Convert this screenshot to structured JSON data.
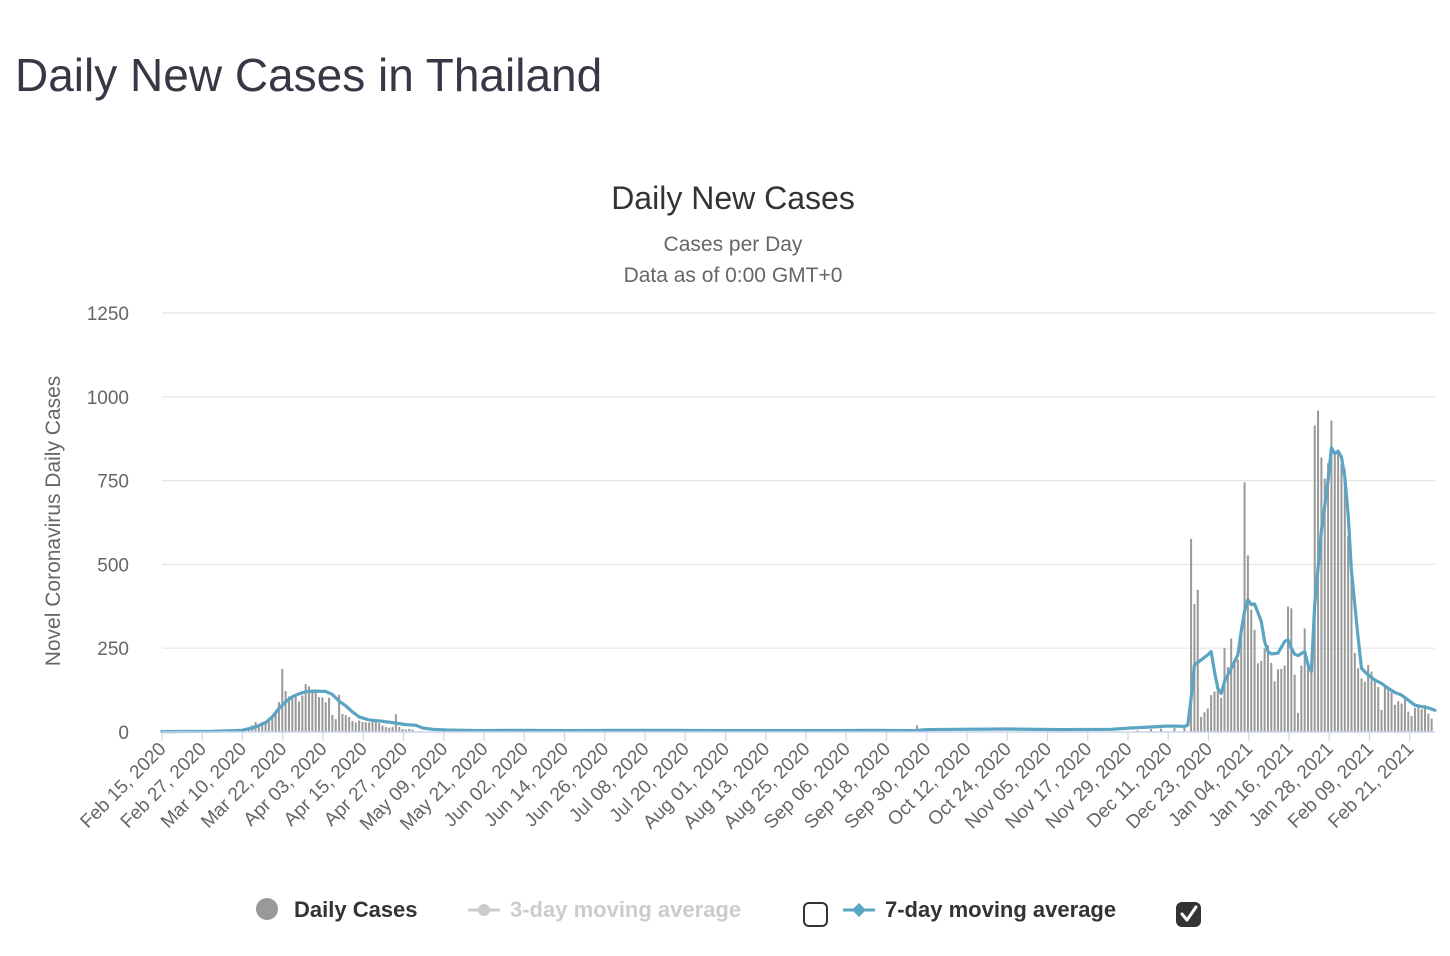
{
  "page": {
    "title": "Daily New Cases in Thailand"
  },
  "chart_data": {
    "type": "bar",
    "title": "Daily New Cases",
    "subtitle_lines": [
      "Cases per Day",
      "Data as of 0:00 GMT+0"
    ],
    "ylabel": "Novel Coronavirus Daily Cases",
    "ylim": [
      0,
      1250
    ],
    "yticks": [
      0,
      250,
      500,
      750,
      1000,
      1250
    ],
    "x_start": "2020-02-15",
    "x_end": "2021-03-02",
    "x_tick_labels": [
      "Feb 15, 2020",
      "Feb 27, 2020",
      "Mar 10, 2020",
      "Mar 22, 2020",
      "Apr 03, 2020",
      "Apr 15, 2020",
      "Apr 27, 2020",
      "May 09, 2020",
      "May 21, 2020",
      "Jun 02, 2020",
      "Jun 14, 2020",
      "Jun 26, 2020",
      "Jul 08, 2020",
      "Jul 20, 2020",
      "Aug 01, 2020",
      "Aug 13, 2020",
      "Aug 25, 2020",
      "Sep 06, 2020",
      "Sep 18, 2020",
      "Sep 30, 2020",
      "Oct 12, 2020",
      "Oct 24, 2020",
      "Nov 05, 2020",
      "Nov 17, 2020",
      "Nov 29, 2020",
      "Dec 11, 2020",
      "Dec 23, 2020",
      "Jan 04, 2021",
      "Jan 16, 2021",
      "Jan 28, 2021",
      "Feb 09, 2021",
      "Feb 21, 2021"
    ],
    "grid": true,
    "legend_position": "bottom",
    "series": [
      {
        "name": "Daily Cases",
        "type": "bar",
        "color": "#999999",
        "points": [
          [
            "2020-03-08",
            3
          ],
          [
            "2020-03-10",
            5
          ],
          [
            "2020-03-12",
            10
          ],
          [
            "2020-03-13",
            20
          ],
          [
            "2020-03-14",
            30
          ],
          [
            "2020-03-15",
            20
          ],
          [
            "2020-03-16",
            30
          ],
          [
            "2020-03-17",
            33
          ],
          [
            "2020-03-18",
            32
          ],
          [
            "2020-03-19",
            50
          ],
          [
            "2020-03-20",
            60
          ],
          [
            "2020-03-21",
            89
          ],
          [
            "2020-03-22",
            188
          ],
          [
            "2020-03-23",
            122
          ],
          [
            "2020-03-24",
            106
          ],
          [
            "2020-03-25",
            107
          ],
          [
            "2020-03-26",
            111
          ],
          [
            "2020-03-27",
            91
          ],
          [
            "2020-03-28",
            109
          ],
          [
            "2020-03-29",
            143
          ],
          [
            "2020-03-30",
            136
          ],
          [
            "2020-03-31",
            127
          ],
          [
            "2020-04-01",
            120
          ],
          [
            "2020-04-02",
            104
          ],
          [
            "2020-04-03",
            103
          ],
          [
            "2020-04-04",
            89
          ],
          [
            "2020-04-05",
            102
          ],
          [
            "2020-04-06",
            51
          ],
          [
            "2020-04-07",
            38
          ],
          [
            "2020-04-08",
            111
          ],
          [
            "2020-04-09",
            54
          ],
          [
            "2020-04-10",
            50
          ],
          [
            "2020-04-11",
            45
          ],
          [
            "2020-04-12",
            33
          ],
          [
            "2020-04-13",
            28
          ],
          [
            "2020-04-14",
            34
          ],
          [
            "2020-04-15",
            30
          ],
          [
            "2020-04-16",
            29
          ],
          [
            "2020-04-17",
            28
          ],
          [
            "2020-04-18",
            33
          ],
          [
            "2020-04-19",
            32
          ],
          [
            "2020-04-20",
            27
          ],
          [
            "2020-04-21",
            19
          ],
          [
            "2020-04-22",
            15
          ],
          [
            "2020-04-23",
            13
          ],
          [
            "2020-04-24",
            15
          ],
          [
            "2020-04-25",
            53
          ],
          [
            "2020-04-26",
            15
          ],
          [
            "2020-04-27",
            9
          ],
          [
            "2020-04-28",
            7
          ],
          [
            "2020-04-29",
            9
          ],
          [
            "2020-04-30",
            7
          ],
          [
            "2020-09-28",
            20
          ],
          [
            "2020-10-01",
            8
          ],
          [
            "2020-12-03",
            5
          ],
          [
            "2020-12-07",
            9
          ],
          [
            "2020-12-10",
            10
          ],
          [
            "2020-12-14",
            12
          ],
          [
            "2020-12-17",
            15
          ],
          [
            "2020-12-19",
            576
          ],
          [
            "2020-12-20",
            382
          ],
          [
            "2020-12-21",
            424
          ],
          [
            "2020-12-22",
            45
          ],
          [
            "2020-12-23",
            59
          ],
          [
            "2020-12-24",
            70
          ],
          [
            "2020-12-25",
            110
          ],
          [
            "2020-12-26",
            121
          ],
          [
            "2020-12-27",
            144
          ],
          [
            "2020-12-28",
            102
          ],
          [
            "2020-12-29",
            250
          ],
          [
            "2020-12-30",
            194
          ],
          [
            "2020-12-31",
            279
          ],
          [
            "2021-01-01",
            212
          ],
          [
            "2021-01-02",
            216
          ],
          [
            "2021-01-03",
            315
          ],
          [
            "2021-01-04",
            745
          ],
          [
            "2021-01-05",
            527
          ],
          [
            "2021-01-06",
            365
          ],
          [
            "2021-01-07",
            305
          ],
          [
            "2021-01-08",
            205
          ],
          [
            "2021-01-09",
            212
          ],
          [
            "2021-01-10",
            249
          ],
          [
            "2021-01-11",
            259
          ],
          [
            "2021-01-12",
            206
          ],
          [
            "2021-01-13",
            151
          ],
          [
            "2021-01-14",
            187
          ],
          [
            "2021-01-15",
            188
          ],
          [
            "2021-01-16",
            198
          ],
          [
            "2021-01-17",
            374
          ],
          [
            "2021-01-18",
            369
          ],
          [
            "2021-01-19",
            171
          ],
          [
            "2021-01-20",
            57
          ],
          [
            "2021-01-21",
            198
          ],
          [
            "2021-01-22",
            309
          ],
          [
            "2021-01-23",
            198
          ],
          [
            "2021-01-24",
            187
          ],
          [
            "2021-01-25",
            914
          ],
          [
            "2021-01-26",
            959
          ],
          [
            "2021-01-27",
            819
          ],
          [
            "2021-01-28",
            756
          ],
          [
            "2021-01-29",
            802
          ],
          [
            "2021-01-30",
            929
          ],
          [
            "2021-01-31",
            830
          ],
          [
            "2021-02-01",
            834
          ],
          [
            "2021-02-02",
            800
          ],
          [
            "2021-02-03",
            785
          ],
          [
            "2021-02-04",
            585
          ],
          [
            "2021-02-05",
            486
          ],
          [
            "2021-02-06",
            236
          ],
          [
            "2021-02-07",
            190
          ],
          [
            "2021-02-08",
            160
          ],
          [
            "2021-02-09",
            150
          ],
          [
            "2021-02-10",
            200
          ],
          [
            "2021-02-11",
            180
          ],
          [
            "2021-02-12",
            150
          ],
          [
            "2021-02-13",
            134
          ],
          [
            "2021-02-14",
            66
          ],
          [
            "2021-02-15",
            140
          ],
          [
            "2021-02-16",
            136
          ],
          [
            "2021-02-17",
            118
          ],
          [
            "2021-02-18",
            81
          ],
          [
            "2021-02-19",
            92
          ],
          [
            "2021-02-20",
            85
          ],
          [
            "2021-02-21",
            98
          ],
          [
            "2021-02-22",
            61
          ],
          [
            "2021-02-23",
            48
          ],
          [
            "2021-02-24",
            72
          ],
          [
            "2021-02-25",
            74
          ],
          [
            "2021-02-26",
            68
          ],
          [
            "2021-02-27",
            80
          ],
          [
            "2021-02-28",
            55
          ],
          [
            "2021-03-01",
            40
          ]
        ]
      },
      {
        "name": "3-day moving average",
        "type": "line",
        "color": "#cccccc",
        "visible": false,
        "points": []
      },
      {
        "name": "7-day moving average",
        "type": "line",
        "color": "#5ba4c3",
        "visible": true,
        "points": [
          [
            "2020-02-15",
            1
          ],
          [
            "2020-03-01",
            2
          ],
          [
            "2020-03-10",
            5
          ],
          [
            "2020-03-14",
            15
          ],
          [
            "2020-03-17",
            28
          ],
          [
            "2020-03-19",
            45
          ],
          [
            "2020-03-21",
            70
          ],
          [
            "2020-03-23",
            90
          ],
          [
            "2020-03-25",
            105
          ],
          [
            "2020-03-27",
            114
          ],
          [
            "2020-03-29",
            120
          ],
          [
            "2020-04-01",
            122
          ],
          [
            "2020-04-04",
            121
          ],
          [
            "2020-04-06",
            112
          ],
          [
            "2020-04-08",
            92
          ],
          [
            "2020-04-10",
            78
          ],
          [
            "2020-04-12",
            60
          ],
          [
            "2020-04-14",
            45
          ],
          [
            "2020-04-17",
            36
          ],
          [
            "2020-04-20",
            33
          ],
          [
            "2020-04-24",
            28
          ],
          [
            "2020-04-28",
            22
          ],
          [
            "2020-05-01",
            20
          ],
          [
            "2020-05-03",
            12
          ],
          [
            "2020-05-06",
            8
          ],
          [
            "2020-05-10",
            6
          ],
          [
            "2020-05-20",
            4
          ],
          [
            "2020-06-01",
            5
          ],
          [
            "2020-06-15",
            4
          ],
          [
            "2020-07-01",
            5
          ],
          [
            "2020-07-15",
            5
          ],
          [
            "2020-08-01",
            4
          ],
          [
            "2020-08-15",
            4
          ],
          [
            "2020-09-01",
            4
          ],
          [
            "2020-09-15",
            5
          ],
          [
            "2020-09-27",
            4
          ],
          [
            "2020-10-01",
            7
          ],
          [
            "2020-10-10",
            8
          ],
          [
            "2020-10-25",
            9
          ],
          [
            "2020-11-10",
            7
          ],
          [
            "2020-11-25",
            8
          ],
          [
            "2020-12-01",
            12
          ],
          [
            "2020-12-07",
            15
          ],
          [
            "2020-12-12",
            18
          ],
          [
            "2020-12-17",
            17
          ],
          [
            "2020-12-18",
            20
          ],
          [
            "2020-12-19",
            100
          ],
          [
            "2020-12-20",
            200
          ],
          [
            "2020-12-22",
            215
          ],
          [
            "2020-12-24",
            230
          ],
          [
            "2020-12-25",
            240
          ],
          [
            "2020-12-26",
            180
          ],
          [
            "2020-12-27",
            130
          ],
          [
            "2020-12-28",
            115
          ],
          [
            "2020-12-29",
            150
          ],
          [
            "2020-12-31",
            190
          ],
          [
            "2021-01-02",
            230
          ],
          [
            "2021-01-03",
            300
          ],
          [
            "2021-01-04",
            360
          ],
          [
            "2021-01-05",
            395
          ],
          [
            "2021-01-06",
            380
          ],
          [
            "2021-01-07",
            382
          ],
          [
            "2021-01-09",
            330
          ],
          [
            "2021-01-10",
            270
          ],
          [
            "2021-01-11",
            240
          ],
          [
            "2021-01-12",
            233
          ],
          [
            "2021-01-14",
            235
          ],
          [
            "2021-01-16",
            270
          ],
          [
            "2021-01-17",
            275
          ],
          [
            "2021-01-18",
            250
          ],
          [
            "2021-01-19",
            232
          ],
          [
            "2021-01-20",
            228
          ],
          [
            "2021-01-22",
            240
          ],
          [
            "2021-01-23",
            200
          ],
          [
            "2021-01-24",
            180
          ],
          [
            "2021-01-25",
            380
          ],
          [
            "2021-01-27",
            600
          ],
          [
            "2021-01-29",
            750
          ],
          [
            "2021-01-30",
            848
          ],
          [
            "2021-01-31",
            830
          ],
          [
            "2021-02-01",
            838
          ],
          [
            "2021-02-02",
            820
          ],
          [
            "2021-02-03",
            760
          ],
          [
            "2021-02-04",
            650
          ],
          [
            "2021-02-05",
            480
          ],
          [
            "2021-02-06",
            380
          ],
          [
            "2021-02-07",
            280
          ],
          [
            "2021-02-08",
            190
          ],
          [
            "2021-02-10",
            170
          ],
          [
            "2021-02-12",
            155
          ],
          [
            "2021-02-14",
            145
          ],
          [
            "2021-02-16",
            130
          ],
          [
            "2021-02-18",
            118
          ],
          [
            "2021-02-20",
            110
          ],
          [
            "2021-02-22",
            95
          ],
          [
            "2021-02-24",
            80
          ],
          [
            "2021-02-26",
            76
          ],
          [
            "2021-02-28",
            72
          ],
          [
            "2021-03-02",
            65
          ]
        ]
      }
    ]
  },
  "legend": {
    "items": [
      {
        "label": "Daily Cases",
        "color": "#999999",
        "enabled": true
      },
      {
        "label": "3-day moving average",
        "color": "#cccccc",
        "enabled": false
      },
      {
        "label": "7-day moving average",
        "color": "#5ba4c3",
        "enabled": true
      }
    ],
    "checkbox_3day": "unchecked",
    "checkbox_7day": "checked"
  }
}
